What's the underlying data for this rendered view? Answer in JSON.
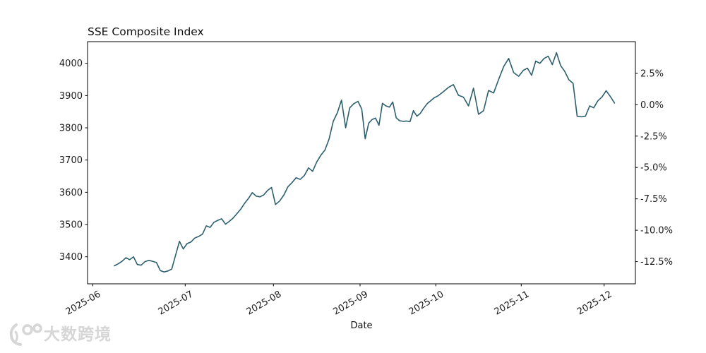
{
  "watermark": {
    "text": "大数跨境",
    "logo": "bird-100-logo",
    "color": "#d6d6d6"
  },
  "chart_data": {
    "type": "line",
    "title": "SSE Composite Index",
    "xlabel": "Date",
    "ylabel": "",
    "line_color": "#2b5f6e",
    "grid": false,
    "legend": "none",
    "left_axis": {
      "ticks": [
        4000,
        3900,
        3800,
        3700,
        3600,
        3500,
        3400
      ],
      "lim": [
        3317,
        4068
      ]
    },
    "right_axis": {
      "tick_labels": [
        "2.5%",
        "0.0%",
        "-2.5%",
        "-5.0%",
        "-7.5%",
        "-10.0%",
        "-12.5%"
      ],
      "tick_values": [
        2.5,
        0.0,
        -2.5,
        -5.0,
        -7.5,
        -10.0,
        -12.5
      ]
    },
    "x_tick_labels": [
      "2025-06",
      "2025-07",
      "2025-08",
      "2025-09",
      "2025-10",
      "2025-11",
      "2025-12"
    ],
    "series": [
      {
        "name": "SSE Composite Index",
        "dates": [
          "2025-06-04",
          "2025-06-05",
          "2025-06-06",
          "2025-06-09",
          "2025-06-10",
          "2025-06-11",
          "2025-06-12",
          "2025-06-13",
          "2025-06-16",
          "2025-06-17",
          "2025-06-18",
          "2025-06-19",
          "2025-06-20",
          "2025-06-23",
          "2025-06-24",
          "2025-06-25",
          "2025-06-26",
          "2025-06-27",
          "2025-06-30",
          "2025-07-01",
          "2025-07-02",
          "2025-07-03",
          "2025-07-04",
          "2025-07-07",
          "2025-07-08",
          "2025-07-09",
          "2025-07-10",
          "2025-07-11",
          "2025-07-14",
          "2025-07-15",
          "2025-07-16",
          "2025-07-17",
          "2025-07-18",
          "2025-07-21",
          "2025-07-22",
          "2025-07-23",
          "2025-07-24",
          "2025-07-25",
          "2025-07-28",
          "2025-07-29",
          "2025-07-30",
          "2025-07-31",
          "2025-08-01",
          "2025-08-04",
          "2025-08-05",
          "2025-08-06",
          "2025-08-07",
          "2025-08-08",
          "2025-08-11",
          "2025-08-12",
          "2025-08-13",
          "2025-08-14",
          "2025-08-15",
          "2025-08-18",
          "2025-08-19",
          "2025-08-20",
          "2025-08-21",
          "2025-08-22",
          "2025-08-25",
          "2025-08-26",
          "2025-08-27",
          "2025-08-28",
          "2025-08-29",
          "2025-09-01",
          "2025-09-02",
          "2025-09-03",
          "2025-09-04",
          "2025-09-05",
          "2025-09-08",
          "2025-09-09",
          "2025-09-10",
          "2025-09-11",
          "2025-09-12",
          "2025-09-15",
          "2025-09-16",
          "2025-09-17",
          "2025-09-18",
          "2025-09-19",
          "2025-09-22",
          "2025-09-23",
          "2025-09-24",
          "2025-09-25",
          "2025-09-26",
          "2025-09-29",
          "2025-09-30",
          "2025-10-09",
          "2025-10-10",
          "2025-10-13",
          "2025-10-14",
          "2025-10-15",
          "2025-10-16",
          "2025-10-17",
          "2025-10-20",
          "2025-10-21",
          "2025-10-22",
          "2025-10-23",
          "2025-10-24",
          "2025-10-27",
          "2025-10-28",
          "2025-10-29",
          "2025-10-30",
          "2025-10-31",
          "2025-11-03",
          "2025-11-04",
          "2025-11-05",
          "2025-11-06",
          "2025-11-07",
          "2025-11-10",
          "2025-11-11",
          "2025-11-12",
          "2025-11-13",
          "2025-11-14",
          "2025-11-17",
          "2025-11-18",
          "2025-11-19",
          "2025-11-20",
          "2025-11-21",
          "2025-11-24",
          "2025-11-25",
          "2025-11-26",
          "2025-11-27",
          "2025-11-28",
          "2025-12-01",
          "2025-12-02",
          "2025-12-03"
        ],
        "values": [
          3372,
          3378,
          3386,
          3397,
          3391,
          3400,
          3376,
          3374,
          3385,
          3389,
          3386,
          3382,
          3357,
          3353,
          3356,
          3362,
          3405,
          3448,
          3424,
          3441,
          3446,
          3458,
          3463,
          3470,
          3496,
          3491,
          3507,
          3513,
          3518,
          3501,
          3510,
          3520,
          3534,
          3548,
          3566,
          3581,
          3599,
          3588,
          3586,
          3592,
          3606,
          3615,
          3562,
          3573,
          3591,
          3617,
          3630,
          3645,
          3640,
          3652,
          3676,
          3665,
          3694,
          3715,
          3731,
          3766,
          3820,
          3847,
          3886,
          3800,
          3862,
          3875,
          3882,
          3858,
          3766,
          3814,
          3826,
          3830,
          3808,
          3876,
          3868,
          3864,
          3880,
          3831,
          3822,
          3820,
          3821,
          3819,
          3853,
          3836,
          3845,
          3861,
          3875,
          3884,
          3893,
          3900,
          3912,
          3925,
          3934,
          3901,
          3895,
          3868,
          3923,
          3842,
          3853,
          3916,
          3908,
          3950,
          3990,
          4015,
          3971,
          3960,
          3978,
          3985,
          3963,
          4007,
          4000,
          4015,
          4022,
          3996,
          4033,
          3993,
          3975,
          3949,
          3938,
          3836,
          3834,
          3836,
          3868,
          3862,
          3884,
          3896,
          3915,
          3897,
          3877
        ]
      }
    ]
  }
}
